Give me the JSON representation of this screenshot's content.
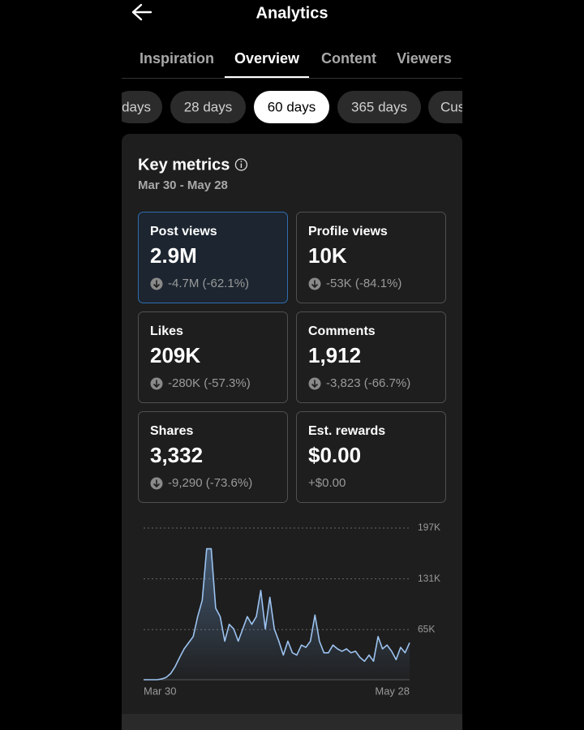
{
  "header": {
    "title": "Analytics"
  },
  "tabs": [
    "Inspiration",
    "Overview",
    "Content",
    "Viewers"
  ],
  "selected_tab": 1,
  "periods": [
    "days",
    "28 days",
    "60 days",
    "365 days",
    "Cus"
  ],
  "selected_period": 2,
  "card": {
    "title": "Key metrics",
    "date_range": "Mar 30 - May 28",
    "metrics": [
      {
        "title": "Post views",
        "value": "2.9M",
        "change": "-4.7M (-62.1%)"
      },
      {
        "title": "Profile views",
        "value": "10K",
        "change": "-53K (-84.1%)"
      },
      {
        "title": "Likes",
        "value": "209K",
        "change": "-280K (-57.3%)"
      },
      {
        "title": "Comments",
        "value": "1,912",
        "change": "-3,823 (-66.7%)"
      },
      {
        "title": "Shares",
        "value": "3,332",
        "change": "-9,290 (-73.6%)"
      },
      {
        "title": "Est. rewards",
        "value": "$0.00",
        "change": "+$0.00"
      }
    ],
    "selected_metric": 0
  },
  "chart_data": {
    "type": "area",
    "color": "#9cc3f0",
    "categories": [
      "Mar 30",
      null,
      null,
      null,
      null,
      null,
      null,
      null,
      null,
      null,
      null,
      null,
      null,
      null,
      null,
      null,
      null,
      null,
      null,
      null,
      null,
      null,
      null,
      null,
      null,
      null,
      null,
      null,
      null,
      null,
      null,
      null,
      null,
      null,
      null,
      null,
      null,
      null,
      null,
      null,
      null,
      null,
      null,
      null,
      null,
      null,
      null,
      null,
      null,
      null,
      null,
      null,
      null,
      null,
      null,
      null,
      null,
      null,
      null,
      "May 28"
    ],
    "values": [
      0,
      0,
      0,
      0,
      1000,
      3000,
      8000,
      17000,
      29000,
      40000,
      48000,
      56000,
      82000,
      103000,
      170000,
      170000,
      93000,
      82000,
      50000,
      72000,
      66000,
      50000,
      66000,
      82000,
      72000,
      82000,
      116000,
      66000,
      107000,
      66000,
      50000,
      32000,
      50000,
      35000,
      32000,
      45000,
      42000,
      50000,
      84000,
      50000,
      35000,
      35000,
      45000,
      40000,
      37000,
      40000,
      35000,
      37000,
      29000,
      24000,
      32000,
      24000,
      56000,
      40000,
      45000,
      37000,
      26000,
      42000,
      35000,
      48000
    ],
    "ylim": [
      0,
      197000
    ],
    "yticks": [
      {
        "value": 65000,
        "label": "65K"
      },
      {
        "value": 131000,
        "label": "131K"
      },
      {
        "value": 197000,
        "label": "197K"
      }
    ],
    "grid": true
  }
}
